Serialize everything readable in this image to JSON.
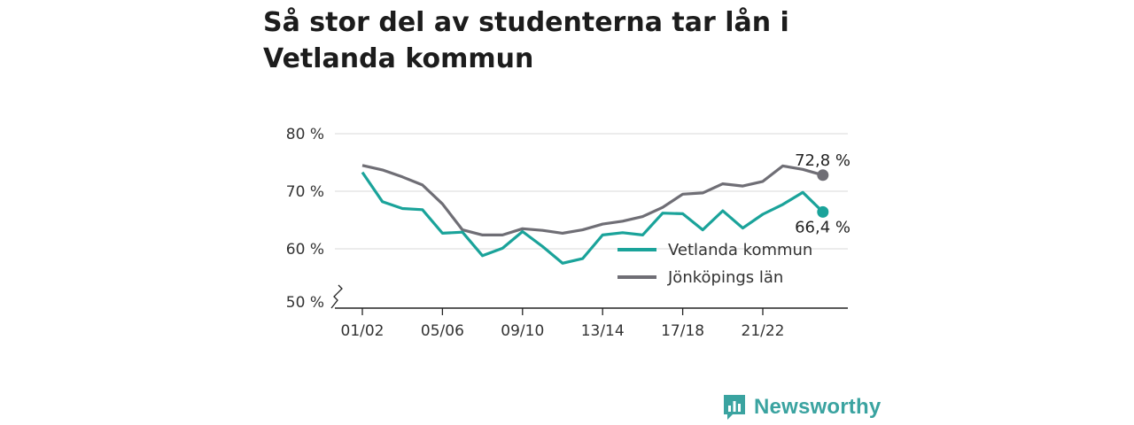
{
  "title": "Så stor del av studenterna tar lån i Vetlanda kommun",
  "brand": {
    "name": "Newsworthy",
    "icon": "bar-chart-logo-icon",
    "color": "#3aa3a0"
  },
  "chart_data": {
    "type": "line",
    "title": "Så stor del av studenterna tar lån i Vetlanda kommun",
    "xlabel": "",
    "ylabel": "",
    "ylim": [
      50,
      80
    ],
    "y_axis_break": true,
    "y_ticks": [
      "50 %",
      "60 %",
      "70 %",
      "80 %"
    ],
    "y_tick_values": [
      50,
      60,
      70,
      80
    ],
    "x_tick_labels": [
      "01/02",
      "05/06",
      "09/10",
      "13/14",
      "17/18",
      "21/22"
    ],
    "x_tick_indices": [
      0,
      4,
      8,
      12,
      16,
      20
    ],
    "x": [
      "01/02",
      "02/03",
      "03/04",
      "04/05",
      "05/06",
      "06/07",
      "07/08",
      "08/09",
      "09/10",
      "10/11",
      "11/12",
      "12/13",
      "13/14",
      "14/15",
      "15/16",
      "16/17",
      "17/18",
      "18/19",
      "19/20",
      "20/21",
      "21/22",
      "22/23",
      "23/24",
      "24/25"
    ],
    "grid": true,
    "legend_position": "center-right",
    "series": [
      {
        "name": "Vetlanda kommun",
        "color": "#1aa39a",
        "values": [
          73.3,
          68.2,
          67.0,
          66.8,
          62.7,
          62.9,
          58.8,
          60.1,
          63.0,
          60.4,
          57.5,
          58.3,
          62.4,
          62.8,
          62.4,
          66.2,
          66.1,
          63.3,
          66.6,
          63.6,
          66.0,
          67.7,
          69.8,
          66.4
        ],
        "end_label": "66,4 %"
      },
      {
        "name": "Jönköpings län",
        "color": "#6f6e75",
        "values": [
          74.5,
          73.7,
          72.5,
          71.1,
          67.8,
          63.3,
          62.4,
          62.4,
          63.5,
          63.2,
          62.7,
          63.3,
          64.3,
          64.8,
          65.6,
          67.2,
          69.5,
          69.7,
          71.3,
          70.9,
          71.7,
          74.4,
          73.8,
          72.8
        ],
        "end_label": "72,8 %"
      }
    ]
  }
}
